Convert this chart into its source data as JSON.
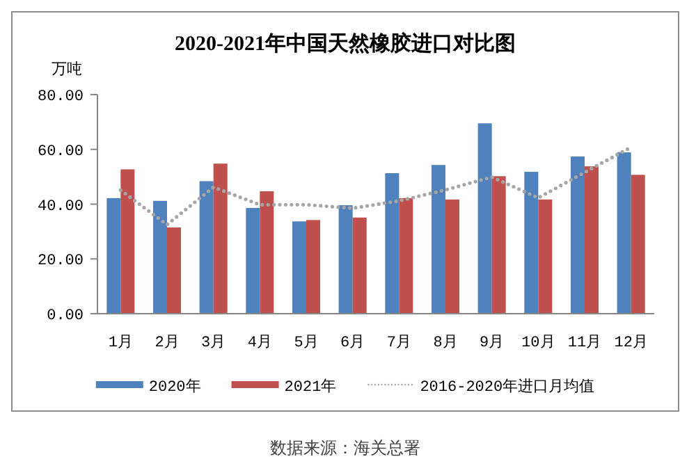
{
  "chart_data": {
    "type": "bar",
    "title": "2020-2021年中国天然橡胶进口对比图",
    "ylabel": "万吨",
    "categories": [
      "1月",
      "2月",
      "3月",
      "4月",
      "5月",
      "6月",
      "7月",
      "8月",
      "9月",
      "10月",
      "11月",
      "12月"
    ],
    "series": [
      {
        "name": "2020年",
        "color": "#4f81bd",
        "values": [
          42.2,
          41.2,
          48.4,
          38.6,
          33.7,
          39.6,
          51.3,
          54.3,
          69.5,
          51.8,
          57.4,
          58.9
        ]
      },
      {
        "name": "2021年",
        "color": "#c0504d",
        "values": [
          52.7,
          31.5,
          54.8,
          44.7,
          34.2,
          35.1,
          42.2,
          41.7,
          50.2,
          41.7,
          53.8,
          50.7
        ]
      },
      {
        "name": "2016-2020年进口月均值",
        "type": "line",
        "line_style": "dotted",
        "color": "#a6a6a6",
        "values": [
          45.1,
          32.5,
          46.2,
          39.8,
          39.8,
          38.5,
          41.2,
          45.2,
          49.9,
          42.3,
          51.6,
          60.8
        ]
      }
    ],
    "ylim": [
      0,
      80
    ],
    "yticks": [
      {
        "value": 0,
        "label": "0.00"
      },
      {
        "value": 20,
        "label": "20.00"
      },
      {
        "value": 40,
        "label": "40.00"
      },
      {
        "value": 60,
        "label": "60.00"
      },
      {
        "value": 80,
        "label": "80.00"
      }
    ],
    "legend": "bottom",
    "annotations": [
      "数据来源：海关总署"
    ]
  }
}
